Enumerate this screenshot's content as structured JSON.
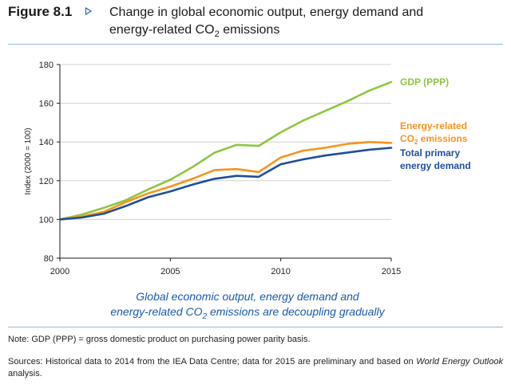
{
  "figure": {
    "label": "Figure 8.1",
    "title_line1": "Change in global economic output, energy demand and",
    "title_line2_pre": "energy-related CO",
    "title_line2_sub": "2",
    "title_line2_post": " emissions"
  },
  "caption": {
    "line1": "Global economic output, energy demand and",
    "line2_pre": "energy-related CO",
    "line2_sub": "2",
    "line2_post": " emissions are decoupling gradually"
  },
  "note": "Note: GDP (PPP) = gross domestic product on purchasing power parity basis.",
  "sources": {
    "pre": "Sources: Historical data to 2014 from the IEA Data Centre; data for 2015 are preliminary and based on ",
    "em": "World Energy Outlook",
    "post": " analysis."
  },
  "colors": {
    "gdp": "#8dc63f",
    "co2": "#f7941d",
    "tped": "#1f4e9c",
    "axis": "#1a1a1a",
    "grid": "#d0d0d0",
    "rule": "#9bb7dc",
    "caption": "#1a5aa6"
  },
  "chart_data": {
    "type": "line",
    "ylabel": "Index (2000 = 100)",
    "xlabel": "",
    "xlim": [
      2000,
      2015
    ],
    "ylim": [
      80,
      180
    ],
    "xticks": [
      2000,
      2005,
      2010,
      2015
    ],
    "yticks": [
      80,
      100,
      120,
      140,
      160,
      180
    ],
    "grid": "horizontal",
    "x": [
      2000,
      2001,
      2002,
      2003,
      2004,
      2005,
      2006,
      2007,
      2008,
      2009,
      2010,
      2011,
      2012,
      2013,
      2014,
      2015
    ],
    "series": [
      {
        "name": "GDP (PPP)",
        "label_lines": [
          "GDP (PPP)"
        ],
        "color": "#8dc63f",
        "values": [
          100,
          102.5,
          106,
          110,
          115.5,
          120.5,
          127,
          134.5,
          138.5,
          138,
          145,
          151,
          156,
          161,
          166.5,
          171
        ]
      },
      {
        "name": "Energy-related CO2 emissions",
        "label_lines": [
          "Energy-related",
          "CO",
          "2",
          " emissions"
        ],
        "color": "#f7941d",
        "values": [
          100,
          101.5,
          104,
          109,
          113.5,
          117,
          121,
          125.5,
          126,
          124.5,
          132,
          135.5,
          137,
          139,
          140,
          139.5
        ]
      },
      {
        "name": "Total primary energy demand",
        "label_lines": [
          "Total primary",
          "energy demand"
        ],
        "color": "#1f4e9c",
        "values": [
          100,
          101,
          103,
          107,
          111.5,
          114.5,
          118,
          121,
          122.5,
          122,
          128.5,
          131,
          133,
          134.5,
          136,
          137
        ]
      }
    ]
  }
}
